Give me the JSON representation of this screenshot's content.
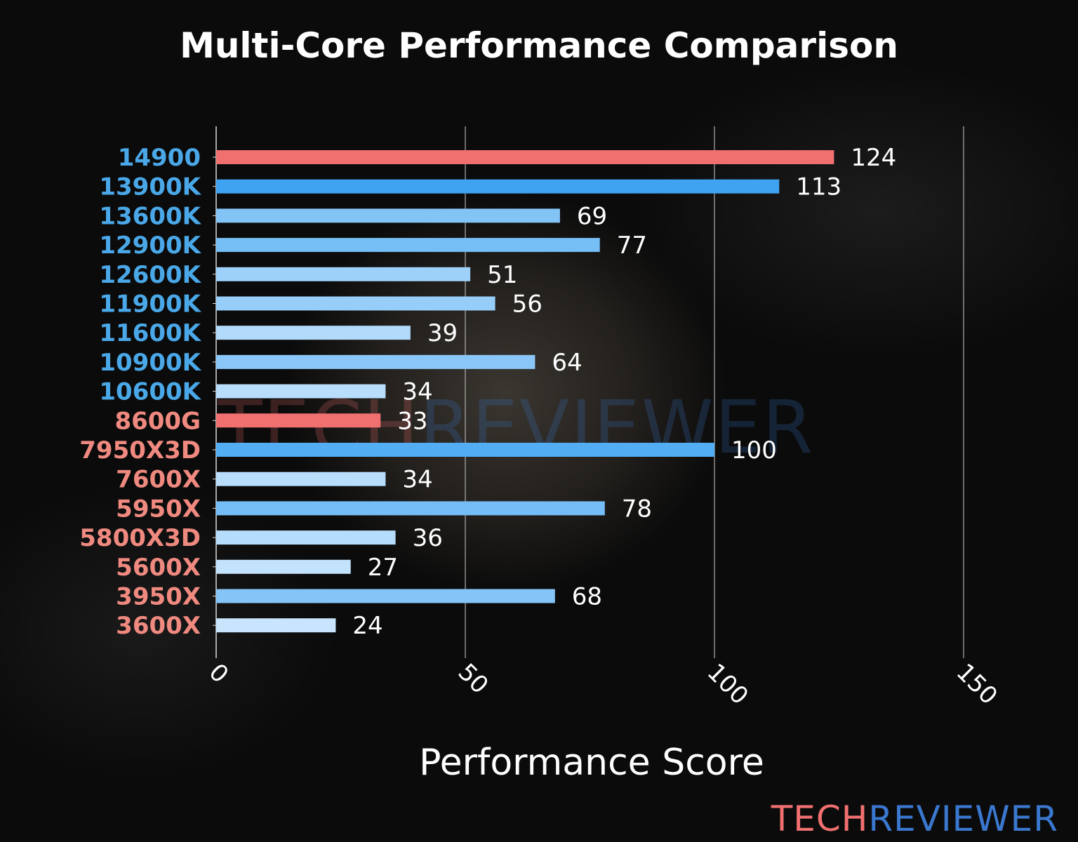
{
  "chart_data": {
    "type": "bar",
    "orientation": "horizontal",
    "title": "Multi-Core Performance Comparison",
    "xlabel": "Performance Score",
    "ylabel": "",
    "xlim": [
      0,
      150
    ],
    "xticks": [
      0,
      50,
      100,
      150
    ],
    "grid": true,
    "categories": [
      "14900",
      "13900K",
      "13600K",
      "12900K",
      "12600K",
      "11900K",
      "11600K",
      "10900K",
      "10600K",
      "8600G",
      "7950X3D",
      "7600X",
      "5950X",
      "5800X3D",
      "5600X",
      "3950X",
      "3600X"
    ],
    "values": [
      124,
      113,
      69,
      77,
      51,
      56,
      39,
      64,
      34,
      33,
      100,
      34,
      78,
      36,
      27,
      68,
      24
    ],
    "label_groups": [
      "intel",
      "intel",
      "intel",
      "intel",
      "intel",
      "intel",
      "intel",
      "intel",
      "intel",
      "amd",
      "amd",
      "amd",
      "amd",
      "amd",
      "amd",
      "amd",
      "amd"
    ],
    "highlighted": [
      "14900",
      "8600G"
    ]
  },
  "colors": {
    "intel_label": "#4aa8e8",
    "amd_label": "#f08a80",
    "highlight_bar": "#f07070",
    "bar_low": "#c8e5fd",
    "bar_high": "#2e9bf0",
    "grid": "#cccccc"
  },
  "watermark": {
    "part1": "TECH",
    "part2": "REVIEWER"
  },
  "logo": {
    "part1": "TECH",
    "part2": "REVIEWER",
    "color1": "#f07070",
    "color2": "#3a78d0"
  }
}
